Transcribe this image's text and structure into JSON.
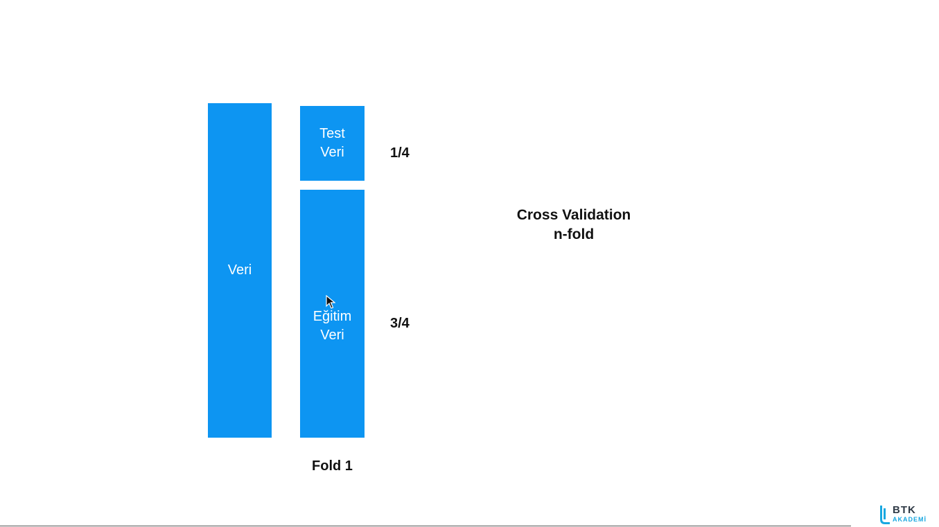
{
  "diagram": {
    "data_block_label": "Veri",
    "test_block_label": "Test\nVeri",
    "train_block_label": "Eğitim\nVeri",
    "test_ratio": "1/4",
    "train_ratio": "3/4",
    "fold_label": "Fold 1",
    "title_line1": "Cross Validation",
    "title_line2": "n-fold",
    "block_color": "#0d95f2"
  },
  "logo": {
    "name": "BTK",
    "subtitle": "AKADEMİ",
    "icon": "btk-logo-icon"
  },
  "cursor": {
    "icon": "mouse-pointer-icon"
  }
}
